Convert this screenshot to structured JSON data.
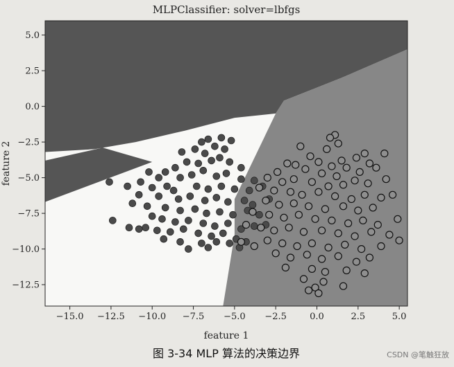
{
  "chart_data": {
    "type": "scatter",
    "title": "MLPClassifier: solver=lbfgs",
    "xlabel": "feature 1",
    "ylabel": "feature 2",
    "xlim": [
      -16.5,
      5.5
    ],
    "ylim": [
      -14.0,
      6.0
    ],
    "xticks": [
      -15.0,
      -12.5,
      -10.0,
      -7.5,
      -5.0,
      -2.5,
      0.0,
      2.5,
      5.0
    ],
    "yticks": [
      5.0,
      2.5,
      0.0,
      -2.5,
      -5.0,
      -7.5,
      -10.0,
      -12.5
    ],
    "xtick_labels": [
      "−15.0",
      "−12.5",
      "−10.0",
      "−7.5",
      "−5.0",
      "−2.5",
      "0.0",
      "2.5",
      "5.0"
    ],
    "ytick_labels": [
      "5.0",
      "2.5",
      "0.0",
      "−2.5",
      "−5.0",
      "−7.5",
      "−10.0",
      "−12.5"
    ],
    "grid": false,
    "regions": [
      {
        "color": "#555555",
        "polygon": [
          [
            -16.5,
            6.0
          ],
          [
            5.5,
            6.0
          ],
          [
            5.5,
            4.0
          ],
          [
            1.5,
            2.0
          ],
          [
            -2.0,
            0.4
          ],
          [
            -2.5,
            -0.5
          ],
          [
            -5.0,
            -0.8
          ],
          [
            -8.0,
            -1.7
          ],
          [
            -11.0,
            -2.5
          ],
          [
            -13.5,
            -3.0
          ],
          [
            -16.5,
            -3.2
          ],
          [
            -16.5,
            -3.8
          ],
          [
            -13.0,
            -2.9
          ],
          [
            -10.0,
            -3.9
          ],
          [
            -16.5,
            -6.7
          ]
        ]
      },
      {
        "color": "#878787",
        "polygon": [
          [
            -2.5,
            -0.5
          ],
          [
            -2.0,
            0.4
          ],
          [
            1.5,
            2.0
          ],
          [
            5.5,
            4.0
          ],
          [
            5.5,
            -14.0
          ],
          [
            -5.7,
            -14.0
          ],
          [
            -5.0,
            -9.0
          ],
          [
            -5.0,
            -6.5
          ]
        ]
      }
    ],
    "series": [
      {
        "color": "#4a4a4a",
        "points": [
          [
            -7.0,
            -2.5
          ],
          [
            -6.6,
            -2.3
          ],
          [
            -5.8,
            -2.2
          ],
          [
            -5.2,
            -2.4
          ],
          [
            -6.2,
            -2.8
          ],
          [
            -7.4,
            -3.0
          ],
          [
            -6.8,
            -3.3
          ],
          [
            -5.6,
            -3.0
          ],
          [
            -8.2,
            -3.2
          ],
          [
            -7.9,
            -3.9
          ],
          [
            -7.2,
            -4.0
          ],
          [
            -6.4,
            -3.8
          ],
          [
            -5.9,
            -3.6
          ],
          [
            -5.3,
            -3.9
          ],
          [
            -8.6,
            -4.3
          ],
          [
            -9.2,
            -4.6
          ],
          [
            -6.9,
            -4.5
          ],
          [
            -4.6,
            -4.3
          ],
          [
            -10.2,
            -4.6
          ],
          [
            -9.6,
            -5.0
          ],
          [
            -8.3,
            -5.0
          ],
          [
            -7.6,
            -4.8
          ],
          [
            -6.1,
            -4.9
          ],
          [
            -5.5,
            -4.7
          ],
          [
            -4.6,
            -5.1
          ],
          [
            -3.8,
            -5.2
          ],
          [
            -10.7,
            -5.3
          ],
          [
            -11.5,
            -5.6
          ],
          [
            -10.0,
            -5.7
          ],
          [
            -9.1,
            -5.6
          ],
          [
            -8.7,
            -5.9
          ],
          [
            -7.3,
            -5.6
          ],
          [
            -6.6,
            -5.8
          ],
          [
            -5.8,
            -5.6
          ],
          [
            -5.0,
            -5.8
          ],
          [
            -4.1,
            -5.9
          ],
          [
            -3.3,
            -5.6
          ],
          [
            -12.6,
            -5.3
          ],
          [
            -10.8,
            -6.2
          ],
          [
            -9.6,
            -6.3
          ],
          [
            -8.4,
            -6.5
          ],
          [
            -7.7,
            -6.3
          ],
          [
            -6.8,
            -6.6
          ],
          [
            -6.1,
            -6.4
          ],
          [
            -5.4,
            -6.7
          ],
          [
            -4.4,
            -6.6
          ],
          [
            -3.9,
            -6.9
          ],
          [
            -2.9,
            -6.5
          ],
          [
            -11.2,
            -6.8
          ],
          [
            -10.3,
            -7.0
          ],
          [
            -9.2,
            -7.1
          ],
          [
            -8.3,
            -7.3
          ],
          [
            -7.4,
            -7.2
          ],
          [
            -6.7,
            -7.5
          ],
          [
            -5.9,
            -7.4
          ],
          [
            -5.1,
            -7.6
          ],
          [
            -4.2,
            -7.3
          ],
          [
            -3.5,
            -7.6
          ],
          [
            -10.0,
            -7.7
          ],
          [
            -9.4,
            -7.9
          ],
          [
            -8.6,
            -8.1
          ],
          [
            -7.8,
            -8.0
          ],
          [
            -6.9,
            -8.2
          ],
          [
            -6.2,
            -8.4
          ],
          [
            -5.4,
            -8.2
          ],
          [
            -4.6,
            -8.6
          ],
          [
            -3.8,
            -8.4
          ],
          [
            -3.1,
            -8.3
          ],
          [
            -10.4,
            -8.5
          ],
          [
            -9.7,
            -8.7
          ],
          [
            -8.9,
            -8.8
          ],
          [
            -8.1,
            -8.6
          ],
          [
            -7.2,
            -8.9
          ],
          [
            -6.4,
            -9.1
          ],
          [
            -5.7,
            -8.9
          ],
          [
            -4.9,
            -9.3
          ],
          [
            -4.3,
            -9.5
          ],
          [
            -9.3,
            -9.3
          ],
          [
            -8.3,
            -9.5
          ],
          [
            -7.0,
            -9.6
          ],
          [
            -6.1,
            -9.5
          ],
          [
            -12.4,
            -8.0
          ],
          [
            -11.4,
            -8.5
          ],
          [
            -10.8,
            -8.6
          ],
          [
            -7.8,
            -10.0
          ],
          [
            -6.6,
            -9.9
          ],
          [
            -5.3,
            -9.6
          ],
          [
            -4.7,
            -9.9
          ]
        ]
      },
      {
        "color": "#8f8f8f",
        "points": [
          [
            1.1,
            -2.0
          ],
          [
            0.8,
            -2.2
          ],
          [
            1.3,
            -2.6
          ],
          [
            -1.0,
            -2.8
          ],
          [
            0.6,
            -3.0
          ],
          [
            2.9,
            -3.3
          ],
          [
            4.1,
            -3.3
          ],
          [
            -0.4,
            -3.5
          ],
          [
            0.1,
            -3.9
          ],
          [
            1.5,
            -3.8
          ],
          [
            2.4,
            -3.6
          ],
          [
            -1.8,
            -4.0
          ],
          [
            -1.3,
            -4.1
          ],
          [
            0.9,
            -4.2
          ],
          [
            1.8,
            -4.3
          ],
          [
            3.2,
            -4.0
          ],
          [
            -2.4,
            -4.6
          ],
          [
            -0.7,
            -4.4
          ],
          [
            0.3,
            -4.7
          ],
          [
            1.2,
            -4.9
          ],
          [
            2.6,
            -4.6
          ],
          [
            3.6,
            -4.3
          ],
          [
            -3.0,
            -5.0
          ],
          [
            -2.1,
            -5.3
          ],
          [
            -1.4,
            -5.1
          ],
          [
            -0.3,
            -5.3
          ],
          [
            0.7,
            -5.6
          ],
          [
            1.6,
            -5.5
          ],
          [
            2.3,
            -5.2
          ],
          [
            3.1,
            -5.4
          ],
          [
            4.2,
            -5.1
          ],
          [
            -3.5,
            -5.7
          ],
          [
            -2.6,
            -5.9
          ],
          [
            -1.6,
            -6.0
          ],
          [
            -0.9,
            -6.2
          ],
          [
            0.1,
            -6.0
          ],
          [
            1.1,
            -6.3
          ],
          [
            2.1,
            -6.5
          ],
          [
            2.9,
            -6.2
          ],
          [
            3.9,
            -6.4
          ],
          [
            4.6,
            -6.2
          ],
          [
            -3.1,
            -6.6
          ],
          [
            -2.3,
            -6.9
          ],
          [
            -1.4,
            -6.8
          ],
          [
            -0.5,
            -7.0
          ],
          [
            0.5,
            -7.2
          ],
          [
            1.6,
            -7.0
          ],
          [
            2.5,
            -7.3
          ],
          [
            3.4,
            -7.1
          ],
          [
            -3.9,
            -7.4
          ],
          [
            -2.9,
            -7.6
          ],
          [
            -2.0,
            -7.8
          ],
          [
            -1.1,
            -7.6
          ],
          [
            -0.1,
            -7.9
          ],
          [
            0.9,
            -8.0
          ],
          [
            1.9,
            -8.2
          ],
          [
            2.8,
            -8.0
          ],
          [
            3.7,
            -8.3
          ],
          [
            4.9,
            -7.9
          ],
          [
            -4.3,
            -8.3
          ],
          [
            -3.4,
            -8.5
          ],
          [
            -2.6,
            -8.7
          ],
          [
            -1.7,
            -8.5
          ],
          [
            -0.8,
            -8.8
          ],
          [
            0.3,
            -8.7
          ],
          [
            1.3,
            -8.9
          ],
          [
            2.3,
            -9.1
          ],
          [
            3.3,
            -8.8
          ],
          [
            4.4,
            -9.0
          ],
          [
            -4.6,
            -9.5
          ],
          [
            -3.0,
            -9.4
          ],
          [
            -2.1,
            -9.6
          ],
          [
            -1.2,
            -9.8
          ],
          [
            -0.3,
            -9.6
          ],
          [
            0.7,
            -9.9
          ],
          [
            1.7,
            -9.7
          ],
          [
            2.7,
            -10.0
          ],
          [
            3.9,
            -9.8
          ],
          [
            5.0,
            -9.4
          ],
          [
            -3.8,
            -9.8
          ],
          [
            -2.5,
            -10.3
          ],
          [
            -1.6,
            -10.6
          ],
          [
            -0.6,
            -10.4
          ],
          [
            0.3,
            -10.7
          ],
          [
            1.3,
            -10.5
          ],
          [
            2.4,
            -10.9
          ],
          [
            3.2,
            -10.6
          ],
          [
            -1.9,
            -11.3
          ],
          [
            -0.3,
            -11.4
          ],
          [
            0.5,
            -11.6
          ],
          [
            1.8,
            -11.5
          ],
          [
            2.9,
            -11.7
          ],
          [
            -0.8,
            -12.1
          ],
          [
            0.4,
            -12.3
          ],
          [
            1.6,
            -12.6
          ],
          [
            -0.1,
            -12.7
          ],
          [
            0.1,
            -13.1
          ],
          [
            -0.5,
            -12.9
          ]
        ]
      }
    ]
  },
  "caption": "图 3-34    MLP 算法的决策边界",
  "watermark": "CSDN @笔触狂放"
}
